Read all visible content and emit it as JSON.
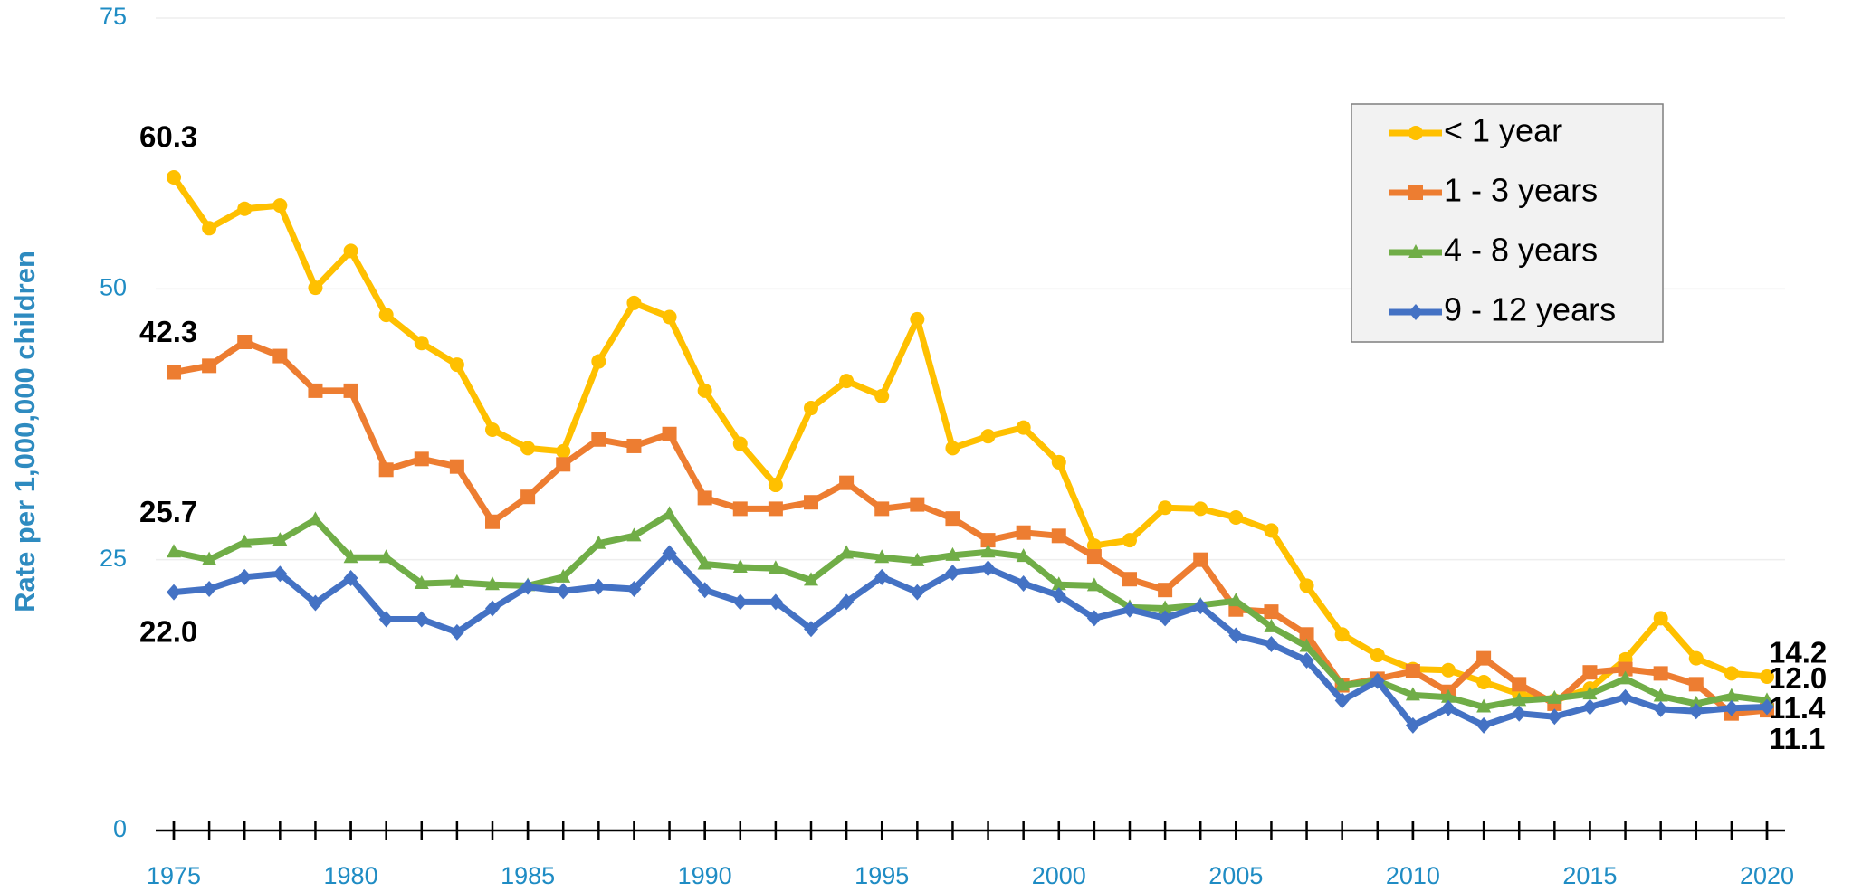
{
  "chart_data": {
    "type": "line",
    "y_label": "Rate per 1,000,000 children",
    "x": [
      1975,
      1976,
      1977,
      1978,
      1979,
      1980,
      1981,
      1982,
      1983,
      1984,
      1985,
      1986,
      1987,
      1988,
      1989,
      1990,
      1991,
      1992,
      1993,
      1994,
      1995,
      1996,
      1997,
      1998,
      1999,
      2000,
      2001,
      2002,
      2003,
      2004,
      2005,
      2006,
      2007,
      2008,
      2009,
      2010,
      2011,
      2012,
      2013,
      2014,
      2015,
      2016,
      2017,
      2018,
      2019,
      2020
    ],
    "xlim": [
      1975,
      2020
    ],
    "xticks": [
      1975,
      1980,
      1985,
      1990,
      1995,
      2000,
      2005,
      2010,
      2015,
      2020
    ],
    "ylim": [
      0,
      75
    ],
    "yticks": [
      0,
      25,
      50,
      75
    ],
    "grid": true,
    "legend": "upper right",
    "series": [
      {
        "name": "< 1 year",
        "color": "#ffc000",
        "marker": "circle",
        "values": [
          60.3,
          55.6,
          57.4,
          57.7,
          50.1,
          53.5,
          47.6,
          45.0,
          43.0,
          37.0,
          35.3,
          35.0,
          43.3,
          48.7,
          47.4,
          40.6,
          35.7,
          31.9,
          39.0,
          41.5,
          40.1,
          47.2,
          35.3,
          36.4,
          37.2,
          34.0,
          26.3,
          26.8,
          29.8,
          29.7,
          28.9,
          27.7,
          22.6,
          18.1,
          16.2,
          14.9,
          14.8,
          13.7,
          12.6,
          12.0,
          13.1,
          15.8,
          19.6,
          15.9,
          14.5,
          14.2
        ],
        "value_labels": [
          "60.3",
          null,
          null,
          null,
          null,
          null,
          null,
          null,
          null,
          null,
          null,
          null,
          null,
          null,
          null,
          null,
          null,
          null,
          null,
          null,
          null,
          null,
          null,
          null,
          null,
          null,
          null,
          null,
          null,
          null,
          null,
          null,
          null,
          null,
          null,
          null,
          null,
          null,
          null,
          null,
          null,
          null,
          null,
          null,
          null,
          "14.2"
        ]
      },
      {
        "name": "1 - 3 years",
        "color": "#ed7d31",
        "marker": "square",
        "values": [
          42.3,
          42.9,
          45.1,
          43.8,
          40.6,
          40.6,
          33.3,
          34.3,
          33.6,
          28.5,
          30.8,
          33.8,
          36.1,
          35.5,
          36.6,
          30.7,
          29.7,
          29.7,
          30.3,
          32.1,
          29.7,
          30.1,
          28.8,
          26.8,
          27.5,
          27.2,
          25.3,
          23.2,
          22.2,
          25.0,
          20.4,
          20.2,
          18.1,
          13.4,
          14.0,
          14.7,
          12.8,
          15.9,
          13.5,
          11.7,
          14.6,
          14.9,
          14.5,
          13.5,
          10.8,
          11.1
        ],
        "value_labels": [
          "42.3",
          null,
          null,
          null,
          null,
          null,
          null,
          null,
          null,
          null,
          null,
          null,
          null,
          null,
          null,
          null,
          null,
          null,
          null,
          null,
          null,
          null,
          null,
          null,
          null,
          null,
          null,
          null,
          null,
          null,
          null,
          null,
          null,
          null,
          null,
          null,
          null,
          null,
          null,
          null,
          null,
          null,
          null,
          null,
          null,
          "11.1"
        ]
      },
      {
        "name": "4 - 8 years",
        "color": "#70ad47",
        "marker": "triangle",
        "values": [
          25.7,
          25.0,
          26.6,
          26.8,
          28.7,
          25.2,
          25.2,
          22.8,
          22.9,
          22.7,
          22.6,
          23.4,
          26.5,
          27.2,
          29.2,
          24.6,
          24.3,
          24.2,
          23.1,
          25.6,
          25.2,
          24.9,
          25.4,
          25.7,
          25.3,
          22.7,
          22.6,
          20.6,
          20.5,
          20.8,
          21.2,
          18.8,
          17.0,
          13.4,
          13.8,
          12.5,
          12.3,
          11.4,
          12.0,
          12.2,
          12.6,
          14.0,
          12.4,
          11.7,
          12.4,
          12.0
        ],
        "value_labels": [
          "25.7",
          null,
          null,
          null,
          null,
          null,
          null,
          null,
          null,
          null,
          null,
          null,
          null,
          null,
          null,
          null,
          null,
          null,
          null,
          null,
          null,
          null,
          null,
          null,
          null,
          null,
          null,
          null,
          null,
          null,
          null,
          null,
          null,
          null,
          null,
          null,
          null,
          null,
          null,
          null,
          null,
          null,
          null,
          null,
          null,
          "12.0"
        ]
      },
      {
        "name": "9 - 12 years",
        "color": "#4472c4",
        "marker": "diamond",
        "values": [
          22.0,
          22.3,
          23.4,
          23.7,
          21.0,
          23.3,
          19.5,
          19.5,
          18.3,
          20.5,
          22.5,
          22.1,
          22.5,
          22.3,
          25.6,
          22.2,
          21.1,
          21.1,
          18.6,
          21.1,
          23.4,
          22.0,
          23.8,
          24.2,
          22.8,
          21.7,
          19.6,
          20.4,
          19.6,
          20.7,
          18.0,
          17.2,
          15.7,
          12.0,
          13.8,
          9.7,
          11.3,
          9.7,
          10.8,
          10.5,
          11.4,
          12.3,
          11.2,
          11.0,
          11.3,
          11.4
        ],
        "value_labels": [
          "22.0",
          null,
          null,
          null,
          null,
          null,
          null,
          null,
          null,
          null,
          null,
          null,
          null,
          null,
          null,
          null,
          null,
          null,
          null,
          null,
          null,
          null,
          null,
          null,
          null,
          null,
          null,
          null,
          null,
          null,
          null,
          null,
          null,
          null,
          null,
          null,
          null,
          null,
          null,
          null,
          null,
          null,
          null,
          null,
          null,
          "11.4"
        ]
      }
    ]
  }
}
